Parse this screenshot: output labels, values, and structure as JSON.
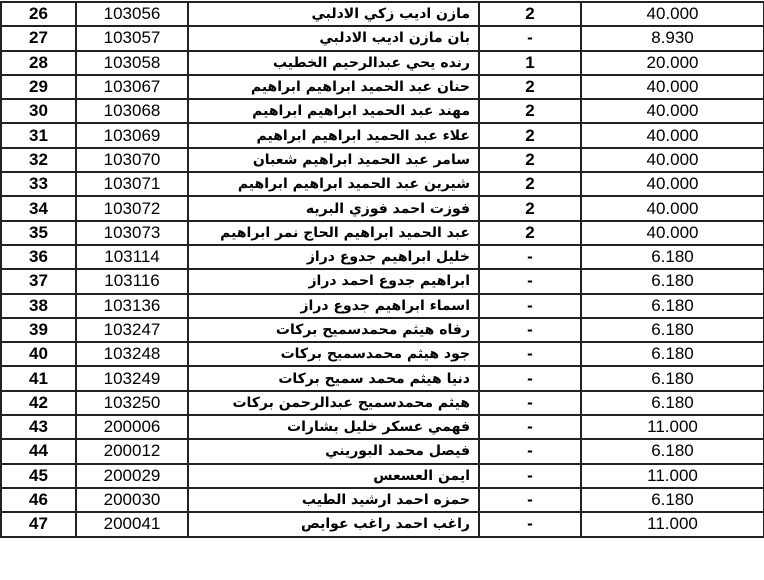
{
  "rows": [
    {
      "no": "26",
      "code": "103056",
      "name": "مازن اديب زكي الادلبي",
      "count": "2",
      "value": "40.000"
    },
    {
      "no": "27",
      "code": "103057",
      "name": "بان مازن اديب الادلبي",
      "count": "-",
      "value": "8.930"
    },
    {
      "no": "28",
      "code": "103058",
      "name": "رنده يحي عبدالرحيم الخطيب",
      "count": "1",
      "value": "20.000"
    },
    {
      "no": "29",
      "code": "103067",
      "name": "حنان عبد الحميد ابراهيم ابراهيم",
      "count": "2",
      "value": "40.000"
    },
    {
      "no": "30",
      "code": "103068",
      "name": "مهند عبد الحميد ابراهيم ابراهيم",
      "count": "2",
      "value": "40.000"
    },
    {
      "no": "31",
      "code": "103069",
      "name": "علاء عبد الحميد ابراهيم ابراهيم",
      "count": "2",
      "value": "40.000"
    },
    {
      "no": "32",
      "code": "103070",
      "name": "سامر عبد الحميد ابراهيم شعبان",
      "count": "2",
      "value": "40.000"
    },
    {
      "no": "33",
      "code": "103071",
      "name": "شيرين عبد الحميد ابراهيم ابراهيم",
      "count": "2",
      "value": "40.000"
    },
    {
      "no": "34",
      "code": "103072",
      "name": "فوزت احمد فوزي البريه",
      "count": "2",
      "value": "40.000"
    },
    {
      "no": "35",
      "code": "103073",
      "name": "عبد الحميد ابراهيم الحاج نمر ابراهيم",
      "count": "2",
      "value": "40.000"
    },
    {
      "no": "36",
      "code": "103114",
      "name": "خليل ابراهيم جدوع دراز",
      "count": "-",
      "value": "6.180"
    },
    {
      "no": "37",
      "code": "103116",
      "name": "ابراهيم جدوع احمد دراز",
      "count": "-",
      "value": "6.180"
    },
    {
      "no": "38",
      "code": "103136",
      "name": "اسماء ابراهيم جدوع دراز",
      "count": "-",
      "value": "6.180"
    },
    {
      "no": "39",
      "code": "103247",
      "name": "رفاه هيثم محمدسميح بركات",
      "count": "-",
      "value": "6.180"
    },
    {
      "no": "40",
      "code": "103248",
      "name": "جود هيثم محمدسميح بركات",
      "count": "-",
      "value": "6.180"
    },
    {
      "no": "41",
      "code": "103249",
      "name": "دنيا هيثم محمد سميح بركات",
      "count": "-",
      "value": "6.180"
    },
    {
      "no": "42",
      "code": "103250",
      "name": "هيثم محمدسميح عبدالرحمن بركات",
      "count": "-",
      "value": "6.180"
    },
    {
      "no": "43",
      "code": "200006",
      "name": "فهمي عسكر خليل بشارات",
      "count": "-",
      "value": "11.000"
    },
    {
      "no": "44",
      "code": "200012",
      "name": "فيصل محمد البوريني",
      "count": "-",
      "value": "6.180"
    },
    {
      "no": "45",
      "code": "200029",
      "name": "ايمن العسعس",
      "count": "-",
      "value": "11.000"
    },
    {
      "no": "46",
      "code": "200030",
      "name": "حمزه احمد ارشيد الطيب",
      "count": "-",
      "value": "6.180"
    },
    {
      "no": "47",
      "code": "200041",
      "name": "راغب احمد راغب عوايص",
      "count": "-",
      "value": "11.000"
    }
  ]
}
